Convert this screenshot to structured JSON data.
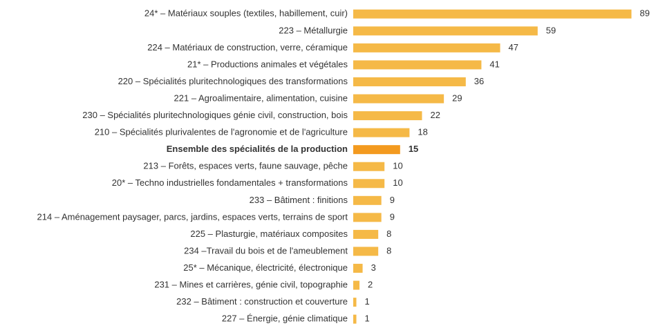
{
  "chart_data": {
    "type": "hbar",
    "categories": [
      "24* – Matériaux souples (textiles, habillement, cuir)",
      "223 – Métallurgie",
      "224 – Matériaux de construction, verre, céramique",
      "21* – Productions animales et végétales",
      "220 – Spécialités pluritechnologiques des transformations",
      "221 – Agroalimentaire, alimentation, cuisine",
      "230 – Spécialités pluritechnologiques génie civil, construction, bois",
      "210 – Spécialités plurivalentes de l'agronomie et de l'agriculture",
      "Ensemble des spécialités de la production",
      "213 – Forêts, espaces verts, faune sauvage, pêche",
      "20* – Techno industrielles fondamentales + transformations",
      "233 – Bâtiment : finitions",
      "214 – Aménagement paysager, parcs, jardins, espaces verts, terrains de sport",
      "225 – Plasturgie, matériaux composites",
      "234 –Travail du bois et de l'ameublement",
      "25* – Mécanique, électricité, électronique",
      "231 – Mines et carrières, génie civil, topographie",
      "232 – Bâtiment : construction et couverture",
      "227 – Énergie, génie climatique"
    ],
    "values": [
      89,
      59,
      47,
      41,
      36,
      29,
      22,
      18,
      15,
      10,
      10,
      9,
      9,
      8,
      8,
      3,
      2,
      1,
      1
    ],
    "colors": [
      "#f5b947",
      "#f5b947",
      "#f5b947",
      "#f5b947",
      "#f5b947",
      "#f5b947",
      "#f5b947",
      "#f5b947",
      "#f39a1f",
      "#f5b947",
      "#f5b947",
      "#f5b947",
      "#f5b947",
      "#f5b947",
      "#f5b947",
      "#f5b947",
      "#f5b947",
      "#f5b947",
      "#f5b947"
    ],
    "bold": [
      false,
      false,
      false,
      false,
      false,
      false,
      false,
      false,
      true,
      false,
      false,
      false,
      false,
      false,
      false,
      false,
      false,
      false,
      false
    ],
    "xlim": [
      0,
      90
    ]
  }
}
